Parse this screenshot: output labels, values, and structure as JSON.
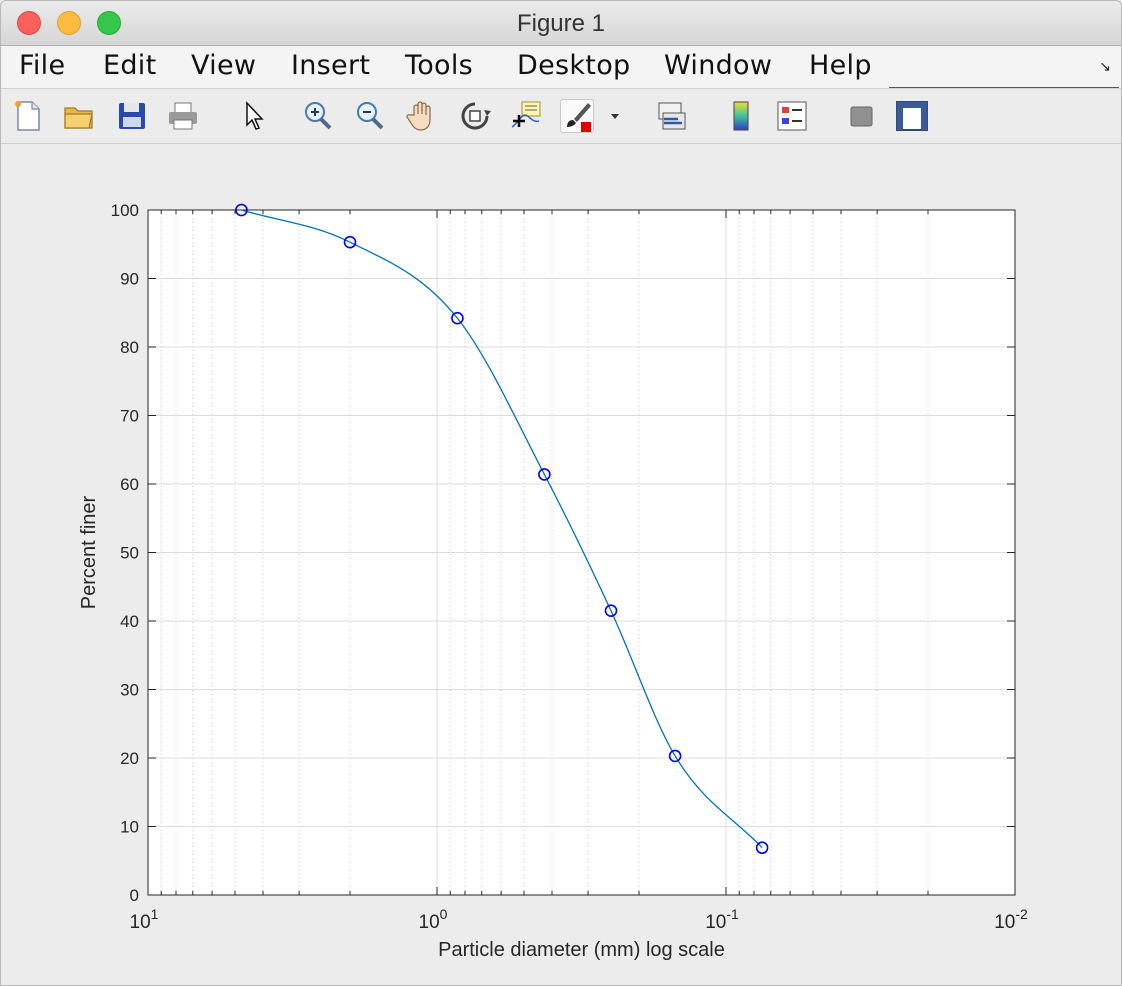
{
  "window": {
    "title": "Figure 1"
  },
  "menu": [
    "File",
    "Edit",
    "View",
    "Insert",
    "Tools",
    "Desktop",
    "Window",
    "Help"
  ],
  "toolbar": [
    {
      "name": "new-figure-icon"
    },
    {
      "name": "open-file-icon"
    },
    {
      "name": "save-icon"
    },
    {
      "name": "print-icon"
    },
    {
      "name": "pointer-icon"
    },
    {
      "name": "zoom-in-icon"
    },
    {
      "name": "zoom-out-icon"
    },
    {
      "name": "pan-hand-icon"
    },
    {
      "name": "rotate-3d-icon"
    },
    {
      "name": "data-cursor-icon"
    },
    {
      "name": "brush-icon"
    },
    {
      "name": "link-plot-icon"
    },
    {
      "name": "colorbar-icon"
    },
    {
      "name": "legend-icon"
    },
    {
      "name": "hide-plot-tools-icon"
    },
    {
      "name": "show-plot-tools-icon"
    }
  ],
  "colors": {
    "line": "#0072bd",
    "marker": "#0000ff",
    "grid": "#d9d9d9"
  },
  "chart_data": {
    "type": "line",
    "xlabel": "Particle diameter (mm) log scale",
    "ylabel": "Percent finer",
    "xscale": "log",
    "x_reversed": true,
    "xlim": [
      10,
      0.01
    ],
    "ylim": [
      0,
      100
    ],
    "yticks": [
      0,
      10,
      20,
      30,
      40,
      50,
      60,
      70,
      80,
      90,
      100
    ],
    "xticks": [
      {
        "value": 10,
        "base": "10",
        "exp": "1"
      },
      {
        "value": 1,
        "base": "10",
        "exp": "0"
      },
      {
        "value": 0.1,
        "base": "10",
        "exp": "-1"
      },
      {
        "value": 0.01,
        "base": "10",
        "exp": "-2"
      }
    ],
    "grid": "on (major and minor)",
    "series": [
      {
        "marker": "circle",
        "points": [
          {
            "x": 4.75,
            "y": 100
          },
          {
            "x": 2.0,
            "y": 95.3
          },
          {
            "x": 0.85,
            "y": 84.2
          },
          {
            "x": 0.425,
            "y": 61.4
          },
          {
            "x": 0.25,
            "y": 41.5
          },
          {
            "x": 0.15,
            "y": 20.3
          },
          {
            "x": 0.075,
            "y": 6.9
          }
        ]
      }
    ]
  }
}
